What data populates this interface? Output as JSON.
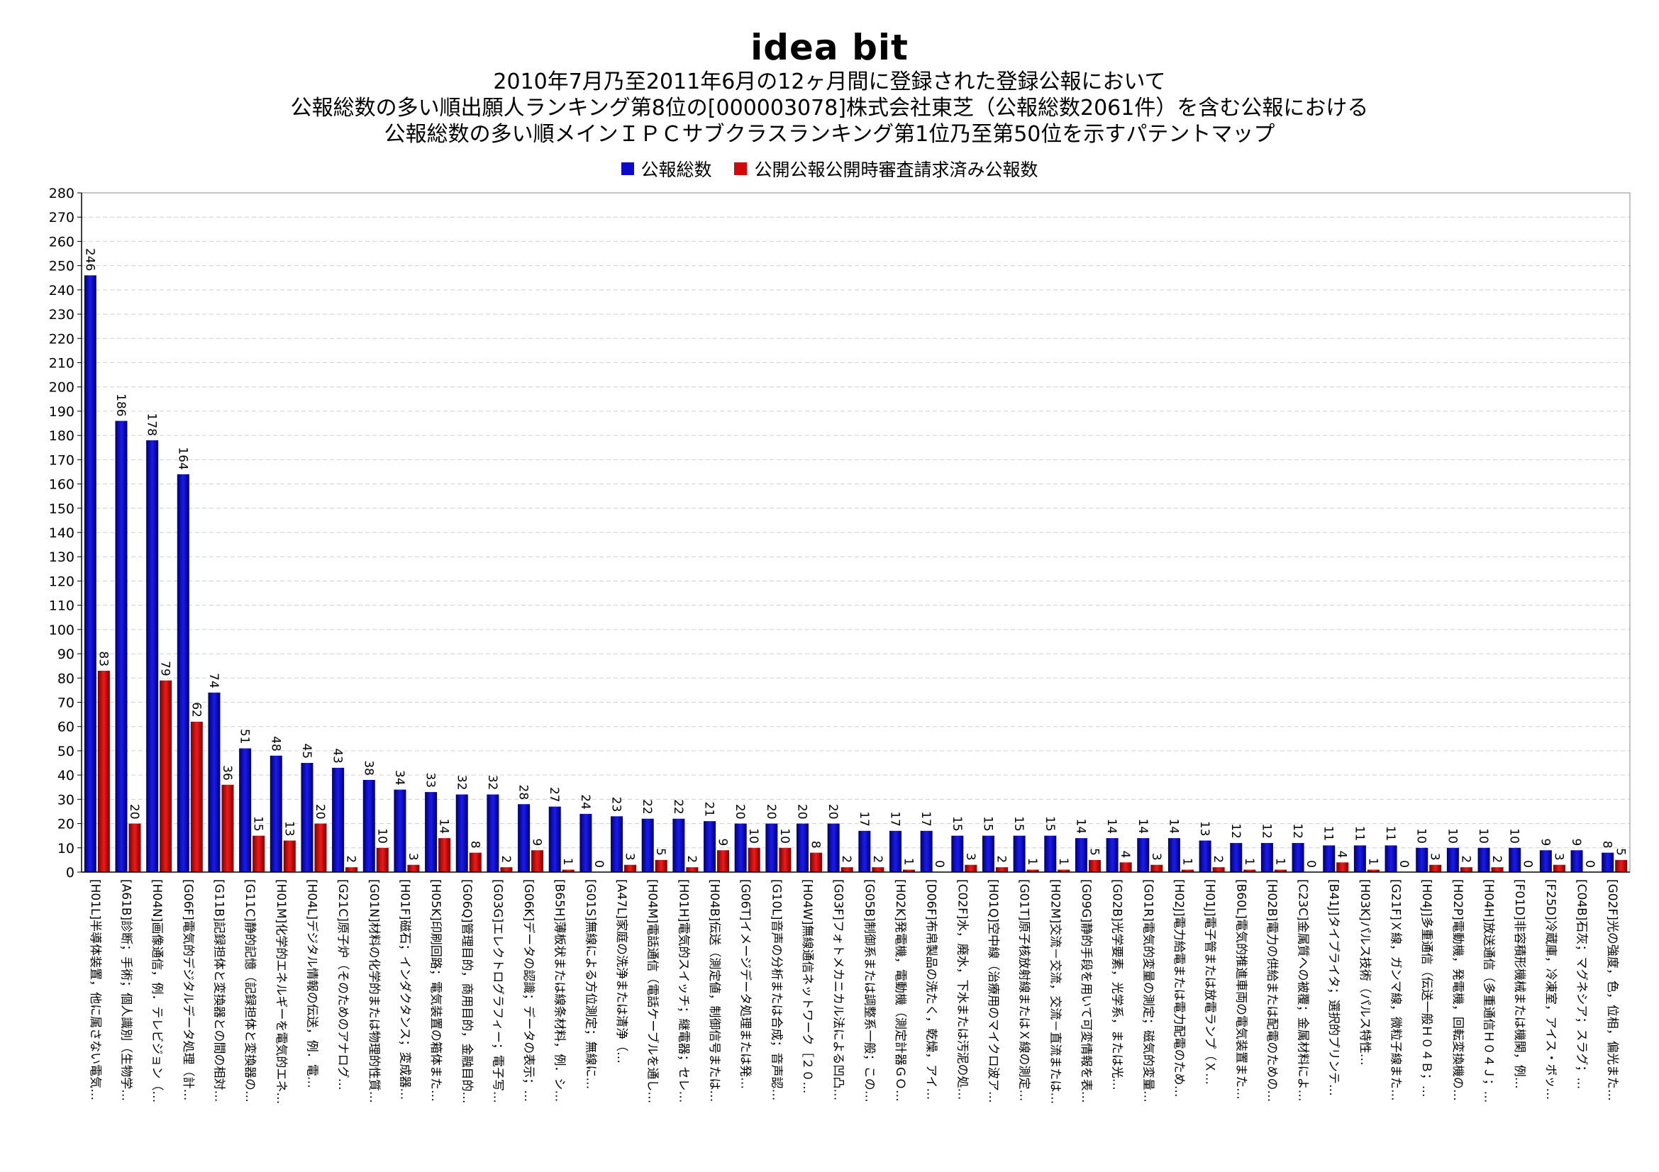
{
  "header": {
    "logo": "idea bit",
    "title_lines": [
      "2010年7月乃至2011年6月の12ヶ月間に登録された登録公報において",
      "公報総数の多い順出願人ランキング第8位の[000003078]株式会社東芝（公報総数2061件）を含む公報における",
      "公報総数の多い順メインＩＰＣサブクラスランキング第1位乃至第50位を示すパテントマップ"
    ]
  },
  "colors": {
    "series1": "#0a0ac8",
    "series2": "#d00a0a",
    "grid": "#cfcfcf"
  },
  "chart_data": {
    "type": "bar",
    "ylim": [
      0,
      280
    ],
    "yticks": [
      0,
      10,
      20,
      30,
      40,
      50,
      60,
      70,
      80,
      90,
      100,
      110,
      120,
      130,
      140,
      150,
      160,
      170,
      180,
      190,
      200,
      210,
      220,
      230,
      240,
      250,
      260,
      270,
      280
    ],
    "grid": true,
    "legend_position": "top",
    "categories": [
      "[H01L]半導体装置，他に属さない電気…",
      "[A61B]診断；手術；個人識別（生物学…",
      "[H04N]画像通信，例．テレビジョン（…",
      "[G06F]電気的デジタルデータ処理（計…",
      "[G11B]記録担体と変換器との間の相対…",
      "[G11C]静的記憶（記録担体と変換器の…",
      "[H01M]化学的エネルギーを電気的エネ…",
      "[H04L]デジタル情報の伝送，例．電…",
      "[G21C]原子炉（そのためのアナログ…",
      "[G01N]材料の化学的または物理的性質…",
      "[H01F]磁石；インダクタンス；変成器…",
      "[H05K]印刷回路；電気装置の箱体また…",
      "[G06Q]管理目的，商用目的，金融目的…",
      "[G03G]エレクトログラフィー；電子写…",
      "[G06K]データの認識；データの表示；…",
      "[B65H]薄板状または線条材料，例．シ…",
      "[G01S]無線による方位測定；無線に…",
      "[A47L]家庭の洗浄または清浄（…",
      "[H04M]電話通信（電話ケーブルを通し…",
      "[H01H]電気的スイッチ；継電器；セレ…",
      "[H04B]伝送（測定値，制御信号または…",
      "[G06T]イメージデータ処理または発…",
      "[G10L]音声の分析または合成；音声認…",
      "[H04W]無線通信ネットワーク［２０…",
      "[G03F]フォトメカニカル法による凹凸…",
      "[G05B]制御系または調整系一般；この…",
      "[H02K]発電機，電動機（測定計器ＧＯ…",
      "[D06F]布帛製品の洗たく，乾燥，アイ…",
      "[C02F]水，廃水，下水または汚泥の処…",
      "[H01Q]空中線（治療用のマイクロ波ア…",
      "[G01T]原子核放射線またはＸ線の測定…",
      "[H02M]交流－交流，交流－直流または…",
      "[G09G]静的手段を用いて可変情報を表…",
      "[G02B]光学要素，光学系，または光…",
      "[G01R]電気的変量の測定；磁気的変量…",
      "[H02J]電力給電または電力配電のため…",
      "[H01J]電子管または放電ランプ（Ｘ…",
      "[B60L]電気的推進車両の電気装置また…",
      "[H02B]電力の供給または配電のための…",
      "[C23C]金属質への被覆；金属材料によ…",
      "[B41J]タイプライタ；選択的プリンテ…",
      "[H03K]パルス技術（パルス特性…",
      "[G21F]Ｘ線，ガンマ線，微粒子線また…",
      "[H04J]多重通信（伝送一般Ｈ０４Ｂ；…",
      "[H02P]電動機，発電機，回転変換機の…",
      "[H04H]放送通信（多重通信Ｈ０４Ｊ；…",
      "[F01D]非容積形機械または機関，例…",
      "[F25D]冷蔵庫，冷凍室，アイス・ボッ…",
      "[C04B]石灰；マグネシア；スラグ；…",
      "[G02F]光の強度，色，位相，偏光また…"
    ],
    "series": [
      {
        "name": "公報総数",
        "values": [
          246,
          186,
          178,
          164,
          74,
          51,
          48,
          45,
          43,
          38,
          34,
          33,
          32,
          32,
          28,
          27,
          24,
          23,
          22,
          22,
          21,
          20,
          20,
          20,
          20,
          17,
          17,
          17,
          15,
          15,
          15,
          15,
          14,
          14,
          14,
          14,
          13,
          12,
          12,
          12,
          11,
          11,
          11,
          10,
          10,
          10,
          10,
          9,
          9,
          8
        ]
      },
      {
        "name": "公開公報公開時審査請求済み公報数",
        "values": [
          83,
          20,
          79,
          62,
          36,
          15,
          13,
          20,
          2,
          10,
          3,
          14,
          8,
          2,
          9,
          1,
          0,
          3,
          5,
          2,
          9,
          10,
          10,
          8,
          2,
          2,
          1,
          0,
          3,
          2,
          1,
          1,
          5,
          4,
          3,
          1,
          2,
          1,
          1,
          0,
          4,
          1,
          0,
          3,
          2,
          2,
          0,
          3,
          0,
          5
        ]
      }
    ]
  }
}
